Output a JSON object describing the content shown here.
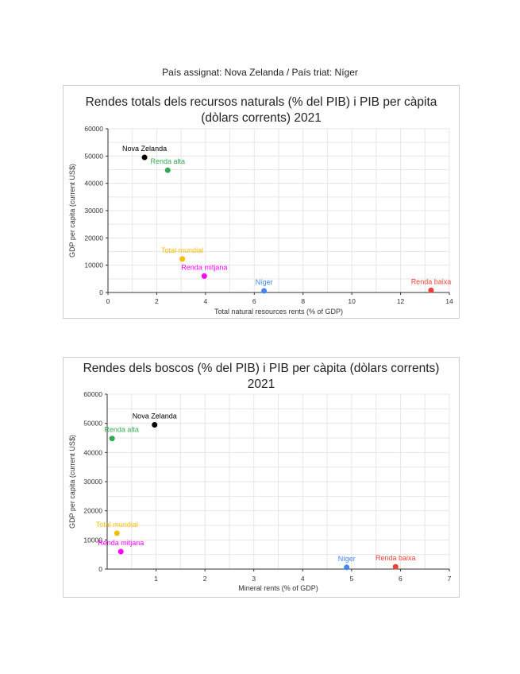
{
  "header": {
    "text": "País assignat: Nova Zelanda / País triat: Níger"
  },
  "chart_data": [
    {
      "type": "scatter",
      "title": [
        "Rendes totals dels recursos naturals (% del PIB) i PIB per càpita",
        "(dòlars corrents) 2021"
      ],
      "xlabel": "Total natural resources rents (% of GDP)",
      "ylabel": "GDP per capita (current US$)",
      "xlim": [
        0,
        14
      ],
      "ylim": [
        0,
        60000
      ],
      "xticks": [
        0,
        2,
        4,
        6,
        8,
        10,
        12,
        14
      ],
      "yticks": [
        0,
        10000,
        20000,
        30000,
        40000,
        50000,
        60000
      ],
      "grid": true,
      "points": [
        {
          "label": "Nova Zelanda",
          "x": 1.5,
          "y": 49500,
          "color": "#000000"
        },
        {
          "label": "Renda alta",
          "x": 2.45,
          "y": 44800,
          "color": "#34a853"
        },
        {
          "label": "Total mundial",
          "x": 3.05,
          "y": 12300,
          "color": "#fbbc04"
        },
        {
          "label": "Renda mitjana",
          "x": 3.95,
          "y": 6000,
          "color": "#ff00ff"
        },
        {
          "label": "Níger",
          "x": 6.4,
          "y": 590,
          "color": "#4285f4"
        },
        {
          "label": "Renda baixa",
          "x": 13.25,
          "y": 800,
          "color": "#ea4335"
        }
      ]
    },
    {
      "type": "scatter",
      "title": [
        "Rendes dels boscos (% del PIB) i PIB per càpita (dòlars corrents)",
        "2021"
      ],
      "xlabel": "Mineral rents (% of GDP)",
      "ylabel": "GDP per capita (current US$)",
      "xlim": [
        0,
        7
      ],
      "ylim": [
        0,
        60000
      ],
      "xticks": [
        1,
        2,
        3,
        4,
        5,
        6,
        7
      ],
      "yticks": [
        0,
        10000,
        20000,
        30000,
        40000,
        50000,
        60000
      ],
      "grid": true,
      "points": [
        {
          "label": "Nova Zelanda",
          "x": 0.97,
          "y": 49500,
          "color": "#000000"
        },
        {
          "label": "Renda alta",
          "x": 0.1,
          "y": 44800,
          "color": "#34a853"
        },
        {
          "label": "Total mundial",
          "x": 0.2,
          "y": 12300,
          "color": "#fbbc04"
        },
        {
          "label": "Renda mitjana",
          "x": 0.28,
          "y": 6000,
          "color": "#ff00ff"
        },
        {
          "label": "Níger",
          "x": 4.9,
          "y": 590,
          "color": "#4285f4"
        },
        {
          "label": "Renda baixa",
          "x": 5.9,
          "y": 800,
          "color": "#ea4335"
        }
      ]
    }
  ]
}
